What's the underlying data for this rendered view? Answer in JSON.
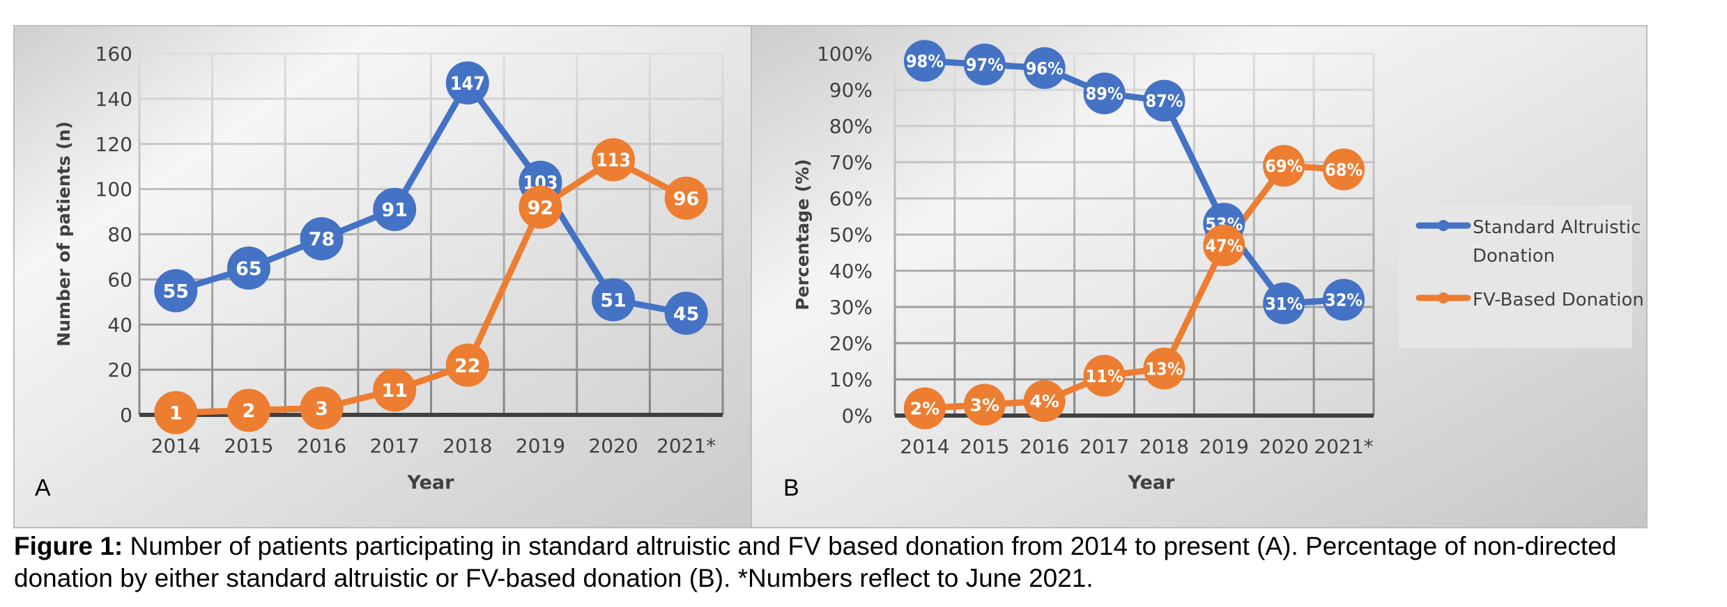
{
  "figure": {
    "caption_label": "Figure 1:",
    "caption_text": " Number of patients participating in standard altruistic and FV based donation from 2014 to present (A). Percentage of non-directed donation by either standard altruistic or FV-based donation (B). *Numbers reflect to June 2021."
  },
  "colors": {
    "standard": "#4472C4",
    "fv": "#ED7D31",
    "text": "#404040",
    "axis": "#404040"
  },
  "chart_data": [
    {
      "panel": "A",
      "type": "line",
      "title": "",
      "panel_label": "A",
      "xlabel": "Year",
      "ylabel": "Number of patients (n)",
      "categories": [
        "2014",
        "2015",
        "2016",
        "2017",
        "2018",
        "2019",
        "2020",
        "2021*"
      ],
      "ylim": [
        0,
        160
      ],
      "yticks": [
        0,
        20,
        40,
        60,
        80,
        100,
        120,
        140,
        160
      ],
      "ytick_labels": [
        "0",
        "20",
        "40",
        "60",
        "80",
        "100",
        "120",
        "140",
        "160"
      ],
      "grid": true,
      "legend": "none",
      "series": [
        {
          "name": "Standard Altruistic Donation",
          "key": "standard",
          "values": [
            55,
            65,
            78,
            91,
            147,
            103,
            51,
            45
          ],
          "labels": [
            "55",
            "65",
            "78",
            "91",
            "147",
            "103",
            "51",
            "45"
          ]
        },
        {
          "name": "FV-Based Donation",
          "key": "fv",
          "values": [
            1,
            2,
            3,
            11,
            22,
            92,
            113,
            96
          ],
          "labels": [
            "1",
            "2",
            "3",
            "11",
            "22",
            "92",
            "113",
            "96"
          ]
        }
      ]
    },
    {
      "panel": "B",
      "type": "line",
      "title": "",
      "panel_label": "B",
      "xlabel": "Year",
      "ylabel": "Percentage (%)",
      "categories": [
        "2014",
        "2015",
        "2016",
        "2017",
        "2018",
        "2019",
        "2020",
        "2021*"
      ],
      "ylim": [
        0,
        100
      ],
      "yticks": [
        0,
        10,
        20,
        30,
        40,
        50,
        60,
        70,
        80,
        90,
        100
      ],
      "ytick_labels": [
        "0%",
        "10%",
        "20%",
        "30%",
        "40%",
        "50%",
        "60%",
        "70%",
        "80%",
        "90%",
        "100%"
      ],
      "grid": true,
      "legend": "right",
      "legend_entries": [
        "Standard Altruistic Donation",
        "FV-Based Donation"
      ],
      "series": [
        {
          "name": "Standard Altruistic Donation",
          "key": "standard",
          "values": [
            98,
            97,
            96,
            89,
            87,
            53,
            31,
            32
          ],
          "labels": [
            "98%",
            "97%",
            "96%",
            "89%",
            "87%",
            "53%",
            "31%",
            "32%"
          ]
        },
        {
          "name": "FV-Based Donation",
          "key": "fv",
          "values": [
            2,
            3,
            4,
            11,
            13,
            47,
            69,
            68
          ],
          "labels": [
            "2%",
            "3%",
            "4%",
            "11%",
            "13%",
            "47%",
            "69%",
            "68%"
          ]
        }
      ]
    }
  ],
  "legend": {
    "items": [
      {
        "line1": "Standard Altruistic",
        "line2": "Donation",
        "key": "standard"
      },
      {
        "line1": "FV-Based Donation",
        "line2": "",
        "key": "fv"
      }
    ]
  }
}
